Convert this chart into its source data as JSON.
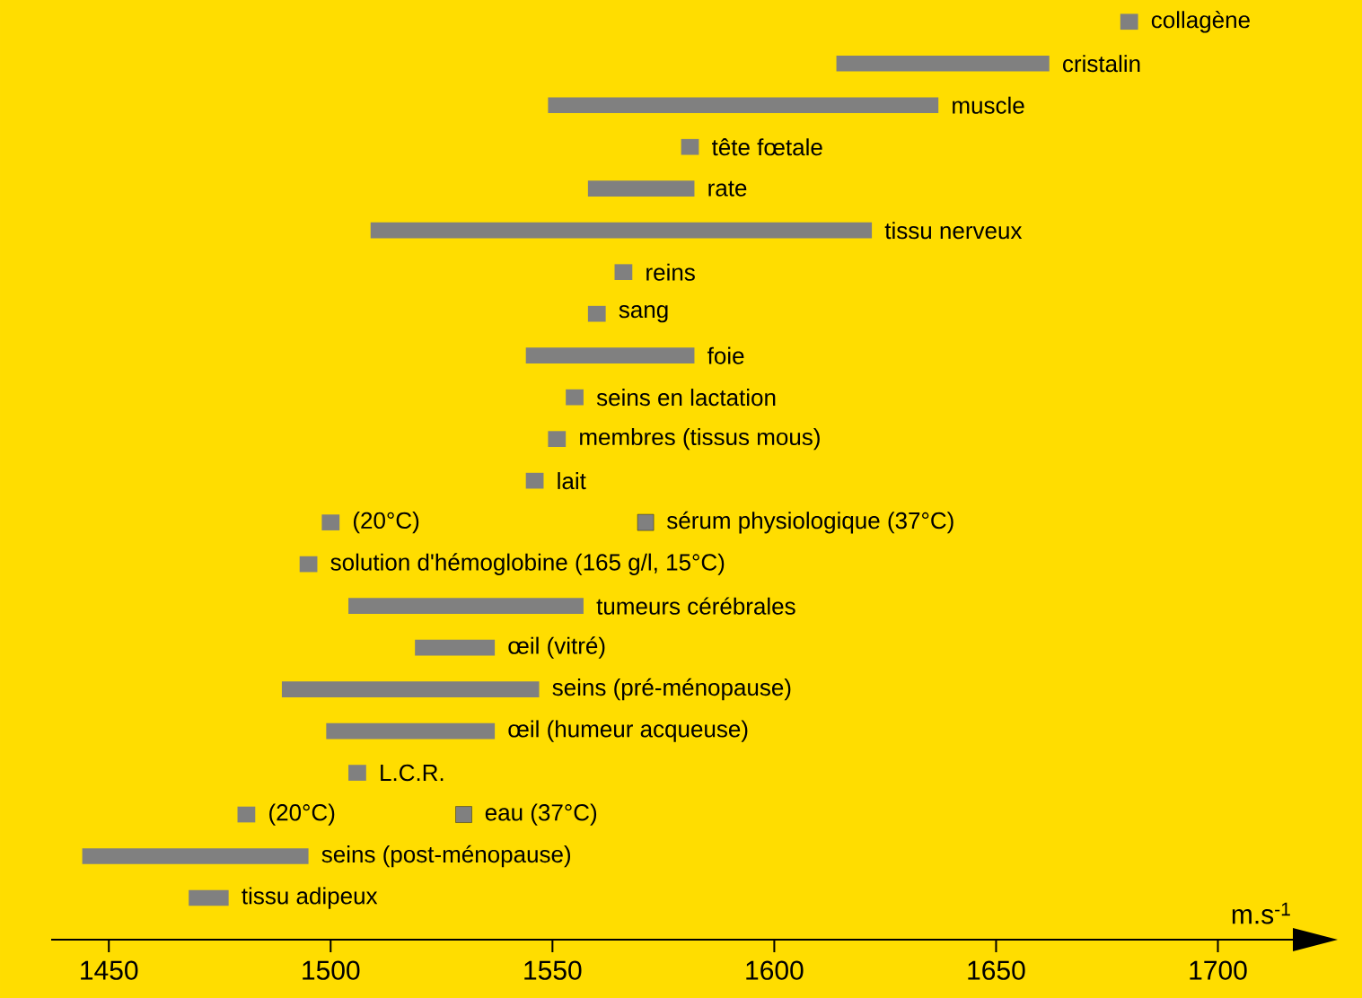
{
  "chart_data": {
    "type": "bar",
    "orientation": "horizontal",
    "xlabel": "m.s$^{-1}$",
    "categories": [
      "collagène",
      "cristalin",
      "muscle",
      "tête fœtale",
      "rate",
      "tissu nerveux",
      "reins",
      "sang",
      "foie",
      "seins en lactation",
      "membres (tissus mous)",
      "lait",
      "(20°C)",
      "solution d'hémoglobine (165 g/l, 15°C)",
      "tumeurs cérébrales",
      "œil (vitré)",
      "seins (pré-ménopause)",
      "œil (humeur acqueuse)",
      "L.C.R.",
      "(20°C)",
      "seins (post-ménopause)",
      "tissu adipeux"
    ],
    "series": [
      {
        "color": "#808080",
        "base": [
          1678,
          1614,
          1549,
          1579,
          1558,
          1509,
          1564,
          1558,
          1544,
          1553,
          1549,
          1544,
          1498,
          1493,
          1504,
          1519,
          1489,
          1499,
          1504,
          1479,
          1444,
          1468
        ],
        "values": [
          4,
          48,
          88,
          4,
          24,
          113,
          4,
          4,
          38,
          4,
          4,
          4,
          4,
          4,
          53,
          18,
          58,
          38,
          4,
          4,
          51,
          9
        ]
      },
      {
        "type": "scatter",
        "marker": "square",
        "color": "#808080",
        "values": [
          null,
          null,
          null,
          null,
          null,
          null,
          null,
          null,
          null,
          null,
          null,
          null,
          1571,
          null,
          null,
          null,
          null,
          null,
          null,
          1530,
          null,
          null
        ]
      }
    ],
    "annotations": [
      "sérum physiologique (37°C)",
      "eau (37°C)"
    ],
    "xlim": [
      1437,
      1725
    ],
    "xticks": [
      1450,
      1500,
      1550,
      1600,
      1650,
      1700
    ]
  }
}
